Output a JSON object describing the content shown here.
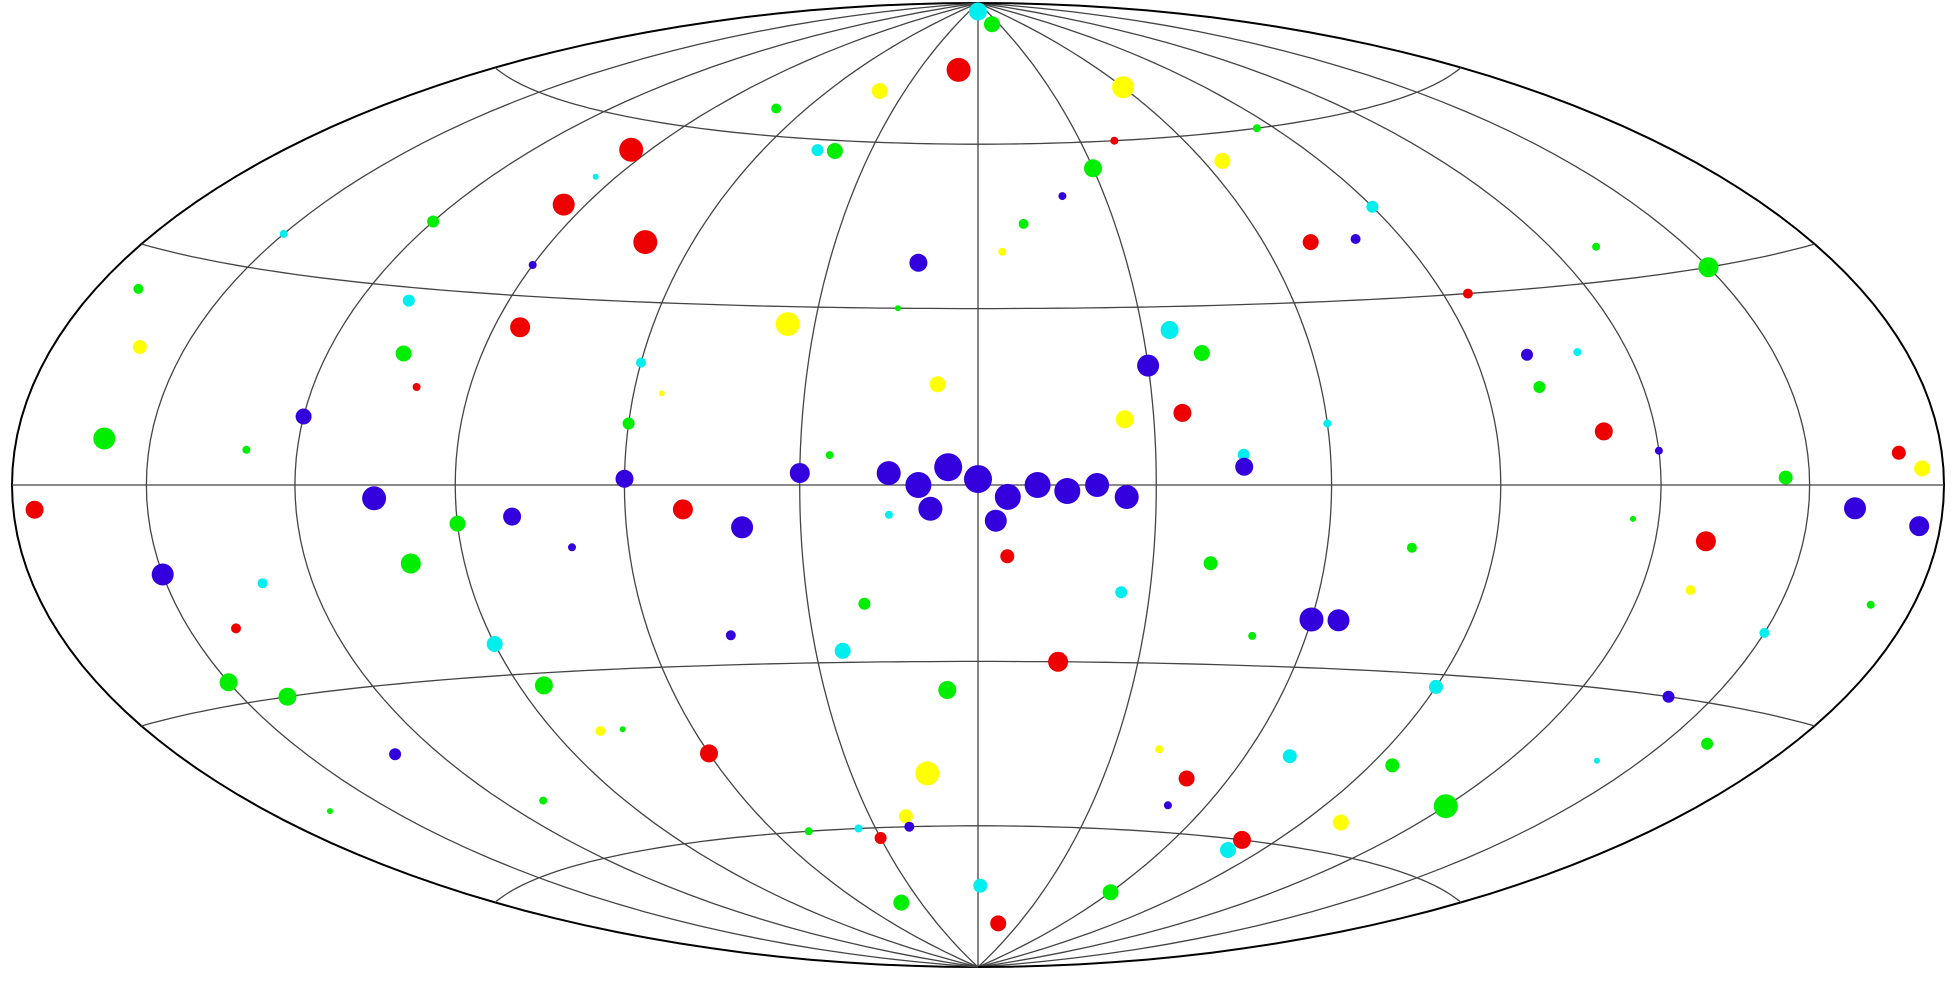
{
  "chart_data": {
    "type": "scatter",
    "projection": "hammer",
    "xlim": [
      180,
      -180
    ],
    "ylim": [
      -90,
      90
    ],
    "xticks": [
      180,
      150,
      120,
      90,
      60,
      30,
      0,
      -30,
      -60,
      -90,
      -120,
      -150,
      -180
    ],
    "yticks": [
      -60,
      -30,
      0,
      30,
      60
    ],
    "grid": true,
    "series": [
      {
        "color": "#00ee00",
        "x": [
          160,
          -150,
          -120,
          140,
          100,
          -60,
          -20,
          85,
          -40,
          -30,
          105,
          6,
          150,
          -145,
          90,
          40,
          -95,
          40,
          -40,
          120,
          -100,
          60,
          20,
          -160,
          170,
          70,
          -10,
          -75,
          130,
          -130,
          25,
          -50,
          110,
          -170,
          50,
          -85,
          15,
          75,
          -115,
          165
        ],
        "values": [
          6,
          30,
          -50,
          -30,
          -12,
          -72,
          85,
          -32,
          22,
          55,
          20,
          -35,
          -27,
          1,
          -6,
          58,
          -45,
          -75,
          -13,
          40,
          15,
          10,
          -20,
          -35,
          25,
          65,
          45,
          -10,
          5,
          35,
          5,
          -25,
          -50,
          -15,
          -60,
          60,
          30,
          -40,
          -5,
          -45
        ],
        "sizes": [
          11,
          10,
          12,
          9,
          10,
          8,
          8,
          9,
          8,
          9,
          8,
          9,
          9,
          7,
          8,
          8,
          7,
          8,
          7,
          6,
          6,
          6,
          6,
          6,
          5,
          5,
          5,
          5,
          4,
          4,
          4,
          4,
          4,
          4,
          4,
          4,
          3,
          3,
          3,
          3
        ]
      },
      {
        "color": "#00eeee",
        "x": [
          0,
          -35,
          90,
          -80,
          25,
          -70,
          -90,
          -1,
          -45,
          110,
          -90,
          45,
          -25,
          -150,
          130,
          60,
          -110,
          15,
          150,
          -60,
          35,
          -140,
          95
        ],
        "values": [
          88,
          26,
          -25,
          -62,
          -28,
          -45,
          -32,
          -72,
          5,
          28,
          45,
          58,
          -18,
          -20,
          -14,
          20,
          20,
          -5,
          35,
          10,
          -60,
          -40,
          50
        ],
        "sizes": [
          9,
          9,
          8,
          8,
          8,
          7,
          7,
          7,
          6,
          6,
          6,
          6,
          6,
          5,
          5,
          5,
          4,
          4,
          4,
          4,
          4,
          3,
          3
        ]
      },
      {
        "color": "#ffff00",
        "x": [
          -60,
          35,
          12,
          -25,
          -100,
          7,
          -175,
          -65,
          160,
          20,
          40,
          -130,
          80,
          -5,
          120,
          -40,
          55
        ],
        "values": [
          70,
          27,
          -50,
          11,
          -55,
          17,
          2,
          55,
          18,
          -58,
          70,
          -15,
          -40,
          40,
          10,
          -45,
          15
        ],
        "sizes": [
          11,
          12,
          12,
          9,
          8,
          8,
          8,
          8,
          7,
          7,
          8,
          5,
          5,
          4,
          4,
          4,
          3
        ]
      },
      {
        "color": "#ee0000",
        "x": [
          10,
          70,
          95,
          175,
          50,
          95,
          -35,
          -130,
          -15,
          -110,
          -80,
          -70,
          85,
          60,
          -50,
          -15,
          -170,
          -5,
          30,
          -95,
          140,
          100,
          -40
        ],
        "values": [
          75,
          40,
          55,
          -3,
          -4,
          45,
          12,
          -8,
          -30,
          8,
          -60,
          40,
          25,
          -45,
          -50,
          -80,
          4,
          -12,
          -62,
          30,
          -20,
          15,
          60
        ],
        "sizes": [
          12,
          12,
          12,
          9,
          10,
          11,
          9,
          10,
          10,
          9,
          9,
          8,
          10,
          9,
          8,
          8,
          7,
          7,
          6,
          5,
          5,
          4,
          4
        ]
      },
      {
        "color": "#3300dd",
        "x": [
          5,
          0,
          -5,
          10,
          -10,
          -15,
          -20,
          -25,
          15,
          8,
          -3,
          -30,
          -60,
          -65,
          105,
          150,
          40,
          -160,
          -175,
          30,
          60,
          80,
          -45,
          12,
          120,
          -100,
          -140,
          130,
          -80,
          45,
          20,
          -120,
          90,
          -20,
          -50,
          70
        ],
        "values": [
          3,
          1,
          -2,
          0,
          0,
          -1,
          0,
          -2,
          2,
          -4,
          -6,
          20,
          -22,
          -22,
          -2,
          -12,
          -7,
          -3,
          -5,
          2,
          1,
          -5,
          3,
          38,
          10,
          20,
          -30,
          -40,
          40,
          -25,
          -60,
          5,
          35,
          50,
          -55,
          -10
        ],
        "sizes": [
          14,
          14,
          13,
          13,
          13,
          13,
          12,
          12,
          12,
          12,
          11,
          11,
          12,
          11,
          12,
          11,
          11,
          11,
          10,
          10,
          9,
          9,
          9,
          9,
          8,
          6,
          6,
          6,
          5,
          5,
          5,
          4,
          4,
          4,
          4,
          4
        ]
      }
    ]
  }
}
